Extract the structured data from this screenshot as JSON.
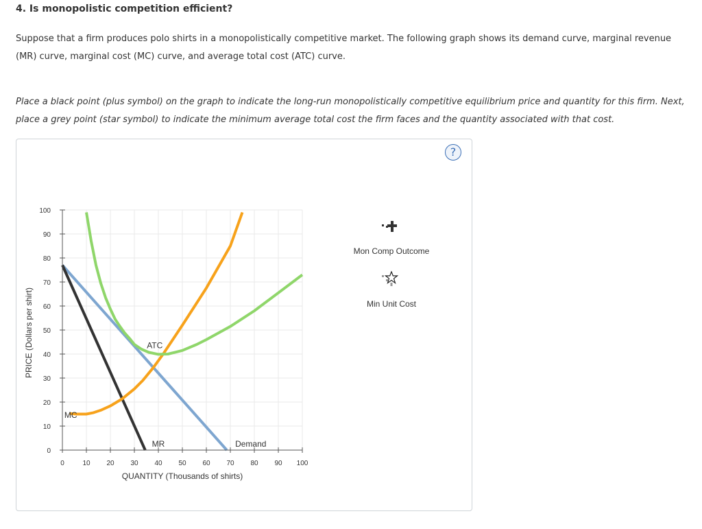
{
  "question": {
    "title": "4. Is monopolistic competition efficient?",
    "intro": "Suppose that a firm produces polo shirts in a monopolistically competitive market. The following graph shows its demand curve, marginal revenue (MR) curve, marginal cost (MC) curve, and average total cost (ATC) curve.",
    "instructions": "Place a black point (plus symbol) on the graph to indicate the long-run monopolistically competitive equilibrium price and quantity for this firm. Next, place a grey point (star symbol) to indicate the minimum average total cost the firm faces and the quantity associated with that cost."
  },
  "help_label": "?",
  "legend": {
    "items": [
      {
        "label": "Mon Comp Outcome",
        "icon": "plus-icon",
        "color": "#333333"
      },
      {
        "label": "Min Unit Cost",
        "icon": "star-icon",
        "color": "#999999"
      }
    ]
  },
  "chart_data": {
    "type": "line",
    "xlabel": "QUANTITY (Thousands of shirts)",
    "ylabel": "PRICE (Dollars per shirt)",
    "xlim": [
      0,
      100
    ],
    "ylim": [
      0,
      100
    ],
    "xticks": [
      0,
      10,
      20,
      30,
      40,
      50,
      60,
      70,
      80,
      90,
      100
    ],
    "yticks": [
      0,
      10,
      20,
      30,
      40,
      50,
      60,
      70,
      80,
      90,
      100
    ],
    "grid": true,
    "series": [
      {
        "name": "Demand",
        "color": "#7ea6d0",
        "x": [
          0,
          68.5
        ],
        "y": [
          77,
          0
        ]
      },
      {
        "name": "MR",
        "color": "#333333",
        "x": [
          0,
          34.5
        ],
        "y": [
          77,
          0
        ]
      },
      {
        "name": "MC",
        "color": "#f7a21b",
        "x": [
          3,
          6,
          10,
          13,
          16,
          20,
          25,
          30,
          33.5,
          38,
          42,
          50,
          60,
          70,
          75
        ],
        "y": [
          15.2,
          15.0,
          15.0,
          15.6,
          16.6,
          18.4,
          21.4,
          25.5,
          29.0,
          34.5,
          40.0,
          52.0,
          67.5,
          85.0,
          99.0
        ]
      },
      {
        "name": "ATC",
        "color": "#8fd66a",
        "x": [
          10,
          12,
          14,
          16,
          18,
          20,
          22,
          24,
          26,
          28,
          30,
          33,
          36,
          40,
          44,
          50,
          56,
          60,
          70,
          80,
          90,
          100
        ],
        "y": [
          99,
          87,
          77,
          69.5,
          63.5,
          58.7,
          54.5,
          51.5,
          48.7,
          46.5,
          44.0,
          42.0,
          40.7,
          39.9,
          40.0,
          41.5,
          44.0,
          46.0,
          51.5,
          58.0,
          65.5,
          73.0
        ]
      }
    ],
    "annotations": [
      {
        "text": "ATC",
        "x": 38.5,
        "y": 42.5
      },
      {
        "text": "MR",
        "x": 40,
        "y": 1.5
      },
      {
        "text": "Demand",
        "x": 78.5,
        "y": 1.5
      },
      {
        "text": "MC",
        "x": 3.5,
        "y": 13.5
      }
    ]
  }
}
